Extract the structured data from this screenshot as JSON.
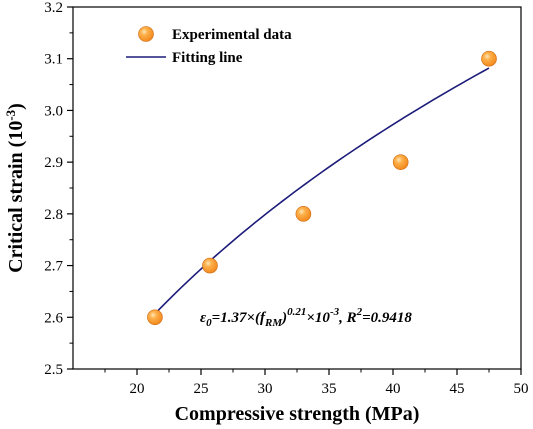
{
  "chart_data": {
    "type": "scatter",
    "xlabel": "Compressive strength (MPa)",
    "ylabel": "Critical strain (10",
    "ylabel_sup": "-3",
    "ylabel_close": ")",
    "xlim": [
      15,
      50
    ],
    "ylim": [
      2.5,
      3.2
    ],
    "xticks": [
      "20",
      "25",
      "30",
      "35",
      "40",
      "45",
      "50"
    ],
    "yticks": [
      "2.5",
      "2.6",
      "2.7",
      "2.8",
      "2.9",
      "3.0",
      "3.1",
      "3.2"
    ],
    "series": [
      {
        "name": "Experimental data",
        "kind": "scatter",
        "color": "#F28A1E",
        "x": [
          21.4,
          25.7,
          33.0,
          40.6,
          47.5
        ],
        "y": [
          2.6,
          2.7,
          2.8,
          2.9,
          3.1
        ]
      },
      {
        "name": "Fitting line",
        "kind": "line",
        "color": "#1C1C7A",
        "model": {
          "a": 1.37,
          "b": 0.21
        },
        "x_range": [
          21.4,
          47.5
        ]
      }
    ],
    "legend_position": "top-left",
    "grid": false,
    "annotation": {
      "eps": "ε",
      "eps_sub": "0",
      "part1": "=1.37×(f",
      "f_sub": "RM",
      "part2": ")",
      "exp": "0.21",
      "part3": "×10",
      "exp2": "-3",
      "part4": ", R",
      "exp3": "2",
      "part5": "=0.9418"
    }
  }
}
